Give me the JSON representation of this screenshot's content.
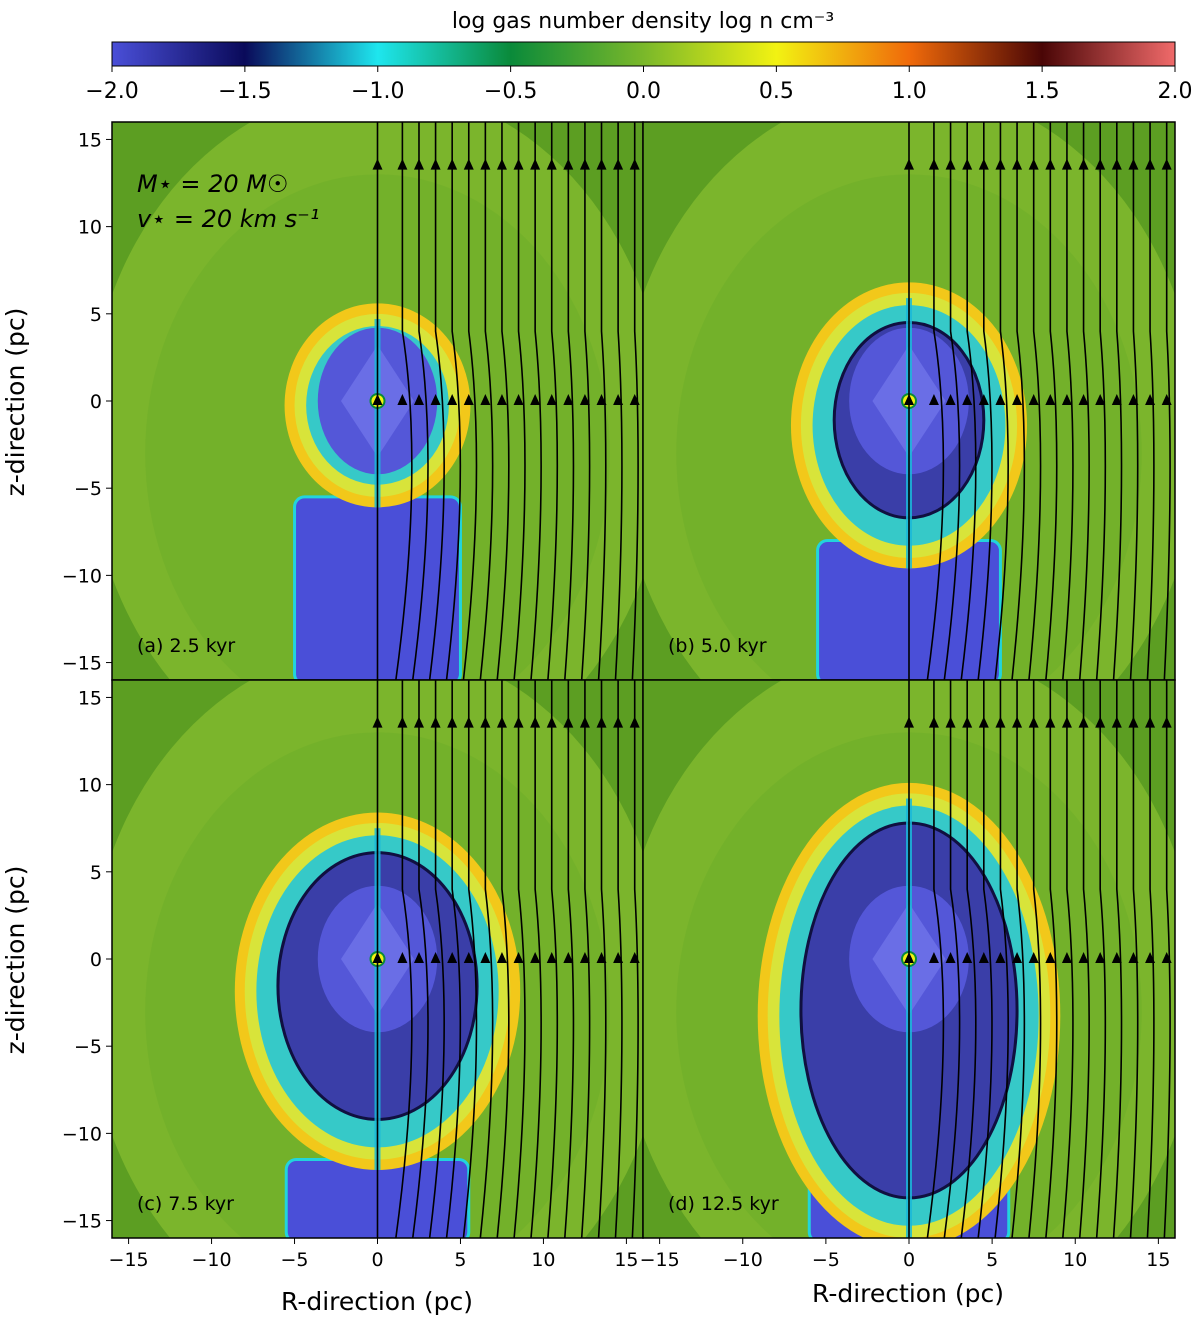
{
  "chart_data": {
    "type": "heatmap",
    "colorbar": {
      "label": "log gas number density log n cm⁻³",
      "range": [
        -2.0,
        2.0
      ],
      "ticks": [
        "−2.0",
        "−1.5",
        "−1.0",
        "−0.5",
        "0.0",
        "0.5",
        "1.0",
        "1.5",
        "2.0"
      ]
    },
    "shared": {
      "xlabel": "R-direction (pc)",
      "ylabel": "z-direction (pc)",
      "xlim": [
        -16,
        16
      ],
      "ylim": [
        -16,
        16
      ],
      "x_ticks": [
        "−15",
        "−10",
        "−5",
        "0",
        "5",
        "10",
        "15"
      ],
      "y_ticks": [
        "15",
        "10",
        "5",
        "0",
        "−5",
        "−10",
        "−15"
      ],
      "streamline_x": [
        0,
        1.5,
        2.5,
        3.5,
        4.5,
        5.5,
        6.5,
        7.5,
        8.5,
        9.5,
        10.5,
        11.5,
        12.5,
        13.5,
        14.5,
        15.5
      ]
    },
    "annotation": {
      "mass_line": "M⋆ = 20 M☉",
      "velocity_line": "v⋆ = 20 km s⁻¹"
    },
    "panels": [
      {
        "id": "a",
        "label": "(a) 2.5 kyr",
        "time_kyr": 2.5,
        "bubble_top_pc": 5.0,
        "bubble_bottom_pc": -5.5,
        "bubble_halfwidth_pc": 5.0,
        "tail_halfwidth_pc": 5.0,
        "tail_start_pc": -5.5
      },
      {
        "id": "b",
        "label": "(b) 5.0 kyr",
        "time_kyr": 5.0,
        "bubble_top_pc": 6.2,
        "bubble_bottom_pc": -9.0,
        "bubble_halfwidth_pc": 6.5,
        "tail_halfwidth_pc": 5.5,
        "tail_start_pc": -8.0
      },
      {
        "id": "c",
        "label": "(c) 7.5 kyr",
        "time_kyr": 7.5,
        "bubble_top_pc": 7.8,
        "bubble_bottom_pc": -11.5,
        "bubble_halfwidth_pc": 8.0,
        "tail_halfwidth_pc": 5.5,
        "tail_start_pc": -11.5
      },
      {
        "id": "d",
        "label": "(d) 12.5 kyr",
        "time_kyr": 12.5,
        "bubble_top_pc": 9.5,
        "bubble_bottom_pc": -16.0,
        "bubble_halfwidth_pc": 8.5,
        "tail_halfwidth_pc": 6.0,
        "tail_start_pc": -8.0
      }
    ]
  }
}
